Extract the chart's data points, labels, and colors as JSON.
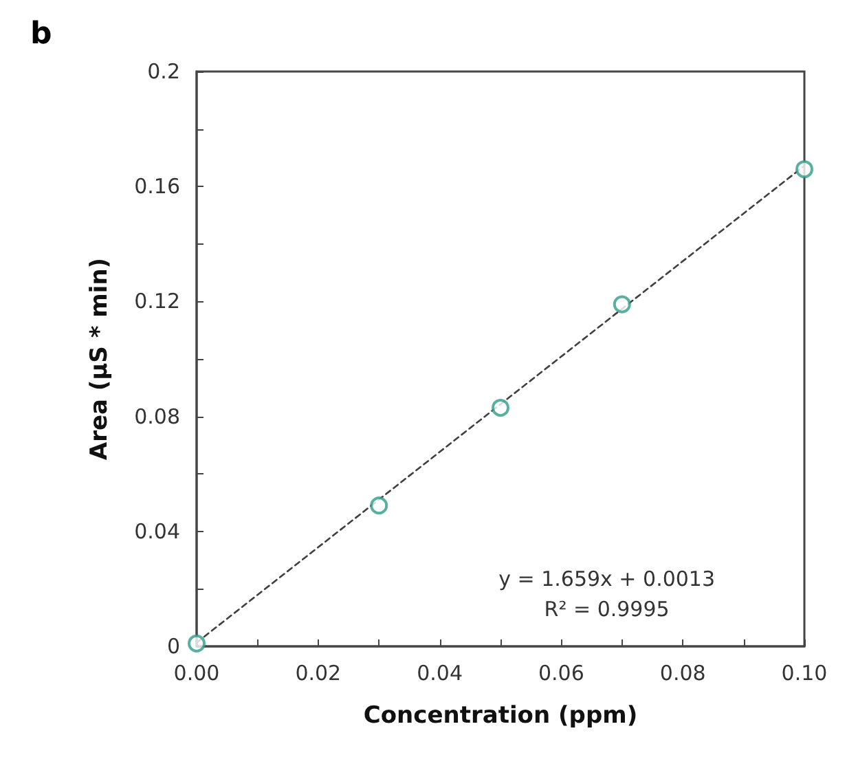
{
  "chart_data": {
    "type": "scatter",
    "xlabel": "Concentration (ppm)",
    "ylabel": "Area (µS * min)",
    "xlim": [
      0,
      0.1
    ],
    "ylim": [
      0,
      0.2
    ],
    "xticks": [
      {
        "value": 0,
        "label": "0.00"
      },
      {
        "value": 0.01,
        "label": null
      },
      {
        "value": 0.02,
        "label": "0.02"
      },
      {
        "value": 0.03,
        "label": null
      },
      {
        "value": 0.04,
        "label": "0.04"
      },
      {
        "value": 0.05,
        "label": null
      },
      {
        "value": 0.06,
        "label": "0.06"
      },
      {
        "value": 0.07,
        "label": null
      },
      {
        "value": 0.08,
        "label": "0.08"
      },
      {
        "value": 0.09,
        "label": null
      },
      {
        "value": 0.1,
        "label": "0.10"
      }
    ],
    "yticks": [
      0,
      {
        "value": 0.02,
        "label": null
      },
      0.04,
      {
        "value": 0.06,
        "label": null
      },
      0.08,
      {
        "value": 0.1,
        "label": null
      },
      0.12,
      {
        "value": 0.14,
        "label": null
      },
      0.16,
      {
        "value": 0.18,
        "label": null
      },
      0.2
    ],
    "grid": false,
    "annotations": [
      "b",
      "y = 1.659x + 0.0013\nR² = 0.9995"
    ],
    "series": [
      {
        "color": "#2e9c8a",
        "marker": "circle",
        "x": [
          0,
          0.03,
          0.05,
          0.07,
          0.1
        ],
        "values": [
          0.001,
          0.049,
          0.083,
          0.119,
          0.166
        ]
      },
      {
        "type": "line",
        "color": "#404040",
        "marker": "none",
        "line_style": "dashed",
        "x": [
          0,
          0.1
        ],
        "values": [
          0.0013,
          0.1672
        ]
      }
    ]
  }
}
